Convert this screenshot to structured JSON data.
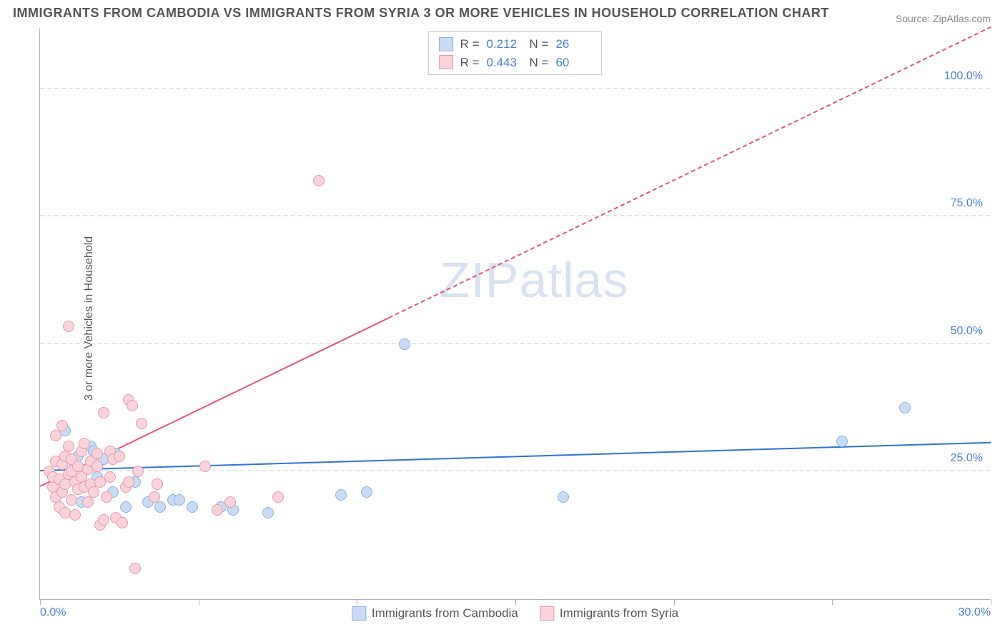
{
  "title": "IMMIGRANTS FROM CAMBODIA VS IMMIGRANTS FROM SYRIA 3 OR MORE VEHICLES IN HOUSEHOLD CORRELATION CHART",
  "source": "Source: ZipAtlas.com",
  "ylabel": "3 or more Vehicles in Household",
  "watermark_a": "ZIP",
  "watermark_b": "atlas",
  "chart": {
    "type": "scatter",
    "xlim": [
      0,
      30
    ],
    "ylim": [
      0,
      112
    ],
    "xticks": [
      0,
      5,
      10,
      15,
      20,
      25,
      30
    ],
    "xtick_labels": [
      "0.0%",
      "",
      "",
      "",
      "",
      "",
      "30.0%"
    ],
    "yticks": [
      25,
      50,
      75,
      100
    ],
    "ytick_labels": [
      "25.0%",
      "50.0%",
      "75.0%",
      "100.0%"
    ],
    "grid_color": "#e5e5e5",
    "background_color": "#ffffff",
    "series": [
      {
        "name": "Immigrants from Cambodia",
        "color_fill": "#c9dcf4",
        "color_stroke": "#8ab2e6",
        "r_value": "0.212",
        "n_value": "26",
        "marker_size": 16,
        "trend": {
          "x1": 0,
          "y1": 25.0,
          "x2": 30,
          "y2": 30.5,
          "color": "#2d73d8"
        },
        "points": [
          [
            0.8,
            33.0
          ],
          [
            1.1,
            26.0
          ],
          [
            1.2,
            28.0
          ],
          [
            1.6,
            30.0
          ],
          [
            1.7,
            29.0
          ],
          [
            1.8,
            24.0
          ],
          [
            2.0,
            27.5
          ],
          [
            2.3,
            21.0
          ],
          [
            2.4,
            28.5
          ],
          [
            2.7,
            18.0
          ],
          [
            1.3,
            19.0
          ],
          [
            3.0,
            23.0
          ],
          [
            3.4,
            19.0
          ],
          [
            3.8,
            18.0
          ],
          [
            4.2,
            19.5
          ],
          [
            4.4,
            19.5
          ],
          [
            4.8,
            18.0
          ],
          [
            5.7,
            18.0
          ],
          [
            6.1,
            17.5
          ],
          [
            7.2,
            17.0
          ],
          [
            9.5,
            20.5
          ],
          [
            10.3,
            21.0
          ],
          [
            11.5,
            50.0
          ],
          [
            16.5,
            20.0
          ],
          [
            25.3,
            31.0
          ],
          [
            27.3,
            37.5
          ]
        ]
      },
      {
        "name": "Immigrants from Syria",
        "color_fill": "#f8d3db",
        "color_stroke": "#e998ab",
        "r_value": "0.443",
        "n_value": "60",
        "marker_size": 16,
        "trend": {
          "x1": 0,
          "y1": 22.0,
          "x2": 30,
          "y2": 112.0,
          "color": "#e8517a",
          "dash_after_x": 11
        },
        "points": [
          [
            0.3,
            25.0
          ],
          [
            0.4,
            22.0
          ],
          [
            0.4,
            24.0
          ],
          [
            0.5,
            20.0
          ],
          [
            0.5,
            27.0
          ],
          [
            0.5,
            32.0
          ],
          [
            0.6,
            18.0
          ],
          [
            0.6,
            23.5
          ],
          [
            0.7,
            21.0
          ],
          [
            0.7,
            26.5
          ],
          [
            0.7,
            34.0
          ],
          [
            0.8,
            17.0
          ],
          [
            0.8,
            22.5
          ],
          [
            0.8,
            28.0
          ],
          [
            0.9,
            24.5
          ],
          [
            0.9,
            30.0
          ],
          [
            0.9,
            53.5
          ],
          [
            1.0,
            19.5
          ],
          [
            1.0,
            25.0
          ],
          [
            1.0,
            27.5
          ],
          [
            1.1,
            16.5
          ],
          [
            1.1,
            23.0
          ],
          [
            1.2,
            21.5
          ],
          [
            1.2,
            26.0
          ],
          [
            1.3,
            24.0
          ],
          [
            1.3,
            29.0
          ],
          [
            1.4,
            22.0
          ],
          [
            1.4,
            30.5
          ],
          [
            1.5,
            19.0
          ],
          [
            1.5,
            25.5
          ],
          [
            1.6,
            22.5
          ],
          [
            1.6,
            27.0
          ],
          [
            1.7,
            21.0
          ],
          [
            1.8,
            26.0
          ],
          [
            1.8,
            28.5
          ],
          [
            1.9,
            14.5
          ],
          [
            1.9,
            23.0
          ],
          [
            2.0,
            15.5
          ],
          [
            2.0,
            36.5
          ],
          [
            2.1,
            20.0
          ],
          [
            2.2,
            24.0
          ],
          [
            2.2,
            29.0
          ],
          [
            2.3,
            27.5
          ],
          [
            2.4,
            16.0
          ],
          [
            2.5,
            28.0
          ],
          [
            2.6,
            15.0
          ],
          [
            2.7,
            22.0
          ],
          [
            2.8,
            23.0
          ],
          [
            2.8,
            39.0
          ],
          [
            2.9,
            38.0
          ],
          [
            3.0,
            6.0
          ],
          [
            3.1,
            25.0
          ],
          [
            3.2,
            34.5
          ],
          [
            3.6,
            20.0
          ],
          [
            3.7,
            22.5
          ],
          [
            5.2,
            26.0
          ],
          [
            5.6,
            17.5
          ],
          [
            6.0,
            19.0
          ],
          [
            7.5,
            20.0
          ],
          [
            8.8,
            82.0
          ]
        ]
      }
    ]
  }
}
